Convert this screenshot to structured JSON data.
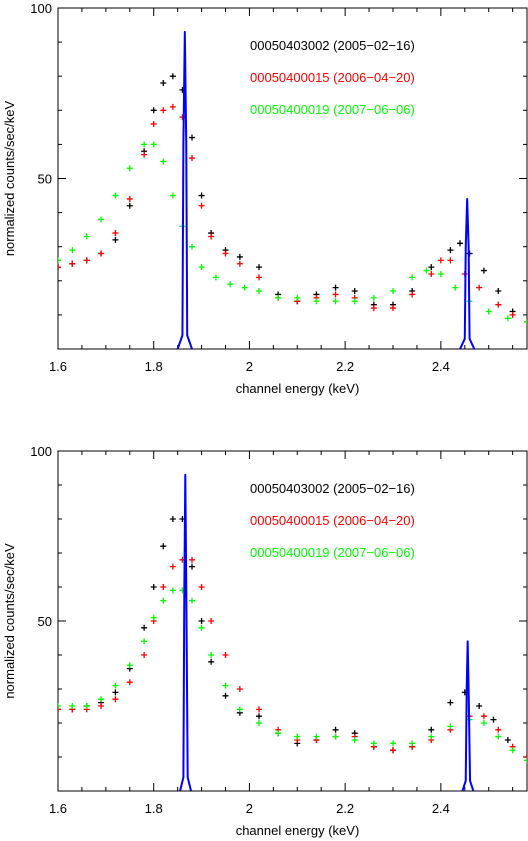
{
  "colors": {
    "series1": "#000000",
    "series2": "#ff0000",
    "series3": "#00ff00",
    "line": "#0000ff",
    "axis": "#000000"
  },
  "chart_data": [
    {
      "type": "scatter",
      "xlabel": "channel energy (keV)",
      "ylabel": "normalized counts/sec/keV",
      "xlim": [
        1.6,
        2.58
      ],
      "ylim": [
        0,
        100
      ],
      "xticks": [
        1.6,
        1.8,
        2,
        2.2,
        2.4
      ],
      "xtick_labels": [
        "1.6",
        "1.8",
        "2",
        "2.2",
        "2.4"
      ],
      "yticks": [
        50,
        100
      ],
      "ytick_labels": [
        "50",
        "100"
      ],
      "grid": false,
      "legend": "top-right",
      "series": [
        {
          "name": "00050403002 (2005−02−16)",
          "color": "#000000",
          "points": [
            [
              1.6,
              24
            ],
            [
              1.63,
              25
            ],
            [
              1.66,
              26
            ],
            [
              1.69,
              28
            ],
            [
              1.72,
              32
            ],
            [
              1.75,
              42
            ],
            [
              1.78,
              58
            ],
            [
              1.8,
              70
            ],
            [
              1.82,
              78
            ],
            [
              1.84,
              80
            ],
            [
              1.86,
              76
            ],
            [
              1.88,
              62
            ],
            [
              1.9,
              45
            ],
            [
              1.92,
              34
            ],
            [
              1.95,
              29
            ],
            [
              1.98,
              27
            ],
            [
              2.02,
              24
            ],
            [
              2.06,
              16
            ],
            [
              2.1,
              14
            ],
            [
              2.14,
              16
            ],
            [
              2.18,
              18
            ],
            [
              2.22,
              17
            ],
            [
              2.26,
              13
            ],
            [
              2.3,
              13
            ],
            [
              2.34,
              17
            ],
            [
              2.38,
              24
            ],
            [
              2.42,
              29
            ],
            [
              2.44,
              31
            ],
            [
              2.46,
              28
            ],
            [
              2.49,
              23
            ],
            [
              2.52,
              17
            ],
            [
              2.55,
              11
            ],
            [
              2.58,
              8
            ]
          ]
        },
        {
          "name": "00050400015 (2006−04−20)",
          "color": "#ff0000",
          "points": [
            [
              1.6,
              24
            ],
            [
              1.63,
              25
            ],
            [
              1.66,
              26
            ],
            [
              1.69,
              28
            ],
            [
              1.72,
              34
            ],
            [
              1.75,
              44
            ],
            [
              1.78,
              57
            ],
            [
              1.8,
              66
            ],
            [
              1.82,
              70
            ],
            [
              1.84,
              71
            ],
            [
              1.86,
              68
            ],
            [
              1.88,
              56
            ],
            [
              1.9,
              42
            ],
            [
              1.92,
              33
            ],
            [
              1.95,
              28
            ],
            [
              1.98,
              25
            ],
            [
              2.02,
              21
            ],
            [
              2.06,
              15
            ],
            [
              2.1,
              14
            ],
            [
              2.14,
              15
            ],
            [
              2.18,
              16
            ],
            [
              2.22,
              15
            ],
            [
              2.26,
              12
            ],
            [
              2.3,
              12
            ],
            [
              2.34,
              16
            ],
            [
              2.38,
              22
            ],
            [
              2.4,
              26
            ],
            [
              2.42,
              26
            ],
            [
              2.45,
              22
            ],
            [
              2.48,
              18
            ],
            [
              2.52,
              13
            ],
            [
              2.55,
              10
            ],
            [
              2.58,
              8
            ]
          ]
        },
        {
          "name": "00050400019 (2007−06−06)",
          "color": "#00ff00",
          "points": [
            [
              1.6,
              26
            ],
            [
              1.63,
              29
            ],
            [
              1.66,
              33
            ],
            [
              1.69,
              38
            ],
            [
              1.72,
              45
            ],
            [
              1.75,
              53
            ],
            [
              1.78,
              60
            ],
            [
              1.8,
              60
            ],
            [
              1.82,
              55
            ],
            [
              1.84,
              45
            ],
            [
              1.86,
              36
            ],
            [
              1.88,
              30
            ],
            [
              1.9,
              24
            ],
            [
              1.93,
              21
            ],
            [
              1.96,
              19
            ],
            [
              1.99,
              18
            ],
            [
              2.02,
              17
            ],
            [
              2.06,
              15
            ],
            [
              2.1,
              15
            ],
            [
              2.14,
              14
            ],
            [
              2.18,
              14
            ],
            [
              2.22,
              14
            ],
            [
              2.26,
              15
            ],
            [
              2.3,
              17
            ],
            [
              2.34,
              21
            ],
            [
              2.37,
              23
            ],
            [
              2.4,
              22
            ],
            [
              2.43,
              18
            ],
            [
              2.46,
              14
            ],
            [
              2.5,
              11
            ],
            [
              2.54,
              9
            ],
            [
              2.58,
              8
            ]
          ]
        }
      ],
      "lines": [
        {
          "color": "#0000ff",
          "points": [
            [
              1.85,
              0
            ],
            [
              1.86,
              4
            ],
            [
              1.862,
              60
            ],
            [
              1.865,
              93
            ],
            [
              1.868,
              60
            ],
            [
              1.87,
              4
            ],
            [
              1.88,
              0
            ]
          ]
        },
        {
          "color": "#0000ff",
          "points": [
            [
              2.44,
              0
            ],
            [
              2.45,
              3
            ],
            [
              2.452,
              30
            ],
            [
              2.455,
              44
            ],
            [
              2.458,
              30
            ],
            [
              2.46,
              3
            ],
            [
              2.47,
              0
            ]
          ]
        }
      ]
    },
    {
      "type": "scatter",
      "xlabel": "channel energy (keV)",
      "ylabel": "normalized counts/sec/keV",
      "xlim": [
        1.6,
        2.58
      ],
      "ylim": [
        0,
        100
      ],
      "xticks": [
        1.6,
        1.8,
        2,
        2.2,
        2.4
      ],
      "xtick_labels": [
        "1.6",
        "1.8",
        "2",
        "2.2",
        "2.4"
      ],
      "yticks": [
        50,
        100
      ],
      "ytick_labels": [
        "50",
        "100"
      ],
      "grid": false,
      "legend": "top-right",
      "series": [
        {
          "name": "00050403002 (2005−02−16)",
          "color": "#000000",
          "points": [
            [
              1.6,
              24
            ],
            [
              1.63,
              24
            ],
            [
              1.66,
              25
            ],
            [
              1.69,
              26
            ],
            [
              1.72,
              29
            ],
            [
              1.75,
              36
            ],
            [
              1.78,
              48
            ],
            [
              1.8,
              60
            ],
            [
              1.82,
              72
            ],
            [
              1.84,
              80
            ],
            [
              1.86,
              80
            ],
            [
              1.88,
              66
            ],
            [
              1.9,
              50
            ],
            [
              1.92,
              38
            ],
            [
              1.95,
              28
            ],
            [
              1.98,
              23
            ],
            [
              2.02,
              22
            ],
            [
              2.06,
              17
            ],
            [
              2.1,
              14
            ],
            [
              2.14,
              15
            ],
            [
              2.18,
              18
            ],
            [
              2.22,
              17
            ],
            [
              2.26,
              13
            ],
            [
              2.3,
              12
            ],
            [
              2.34,
              13
            ],
            [
              2.38,
              18
            ],
            [
              2.42,
              26
            ],
            [
              2.45,
              29
            ],
            [
              2.48,
              25
            ],
            [
              2.51,
              21
            ],
            [
              2.54,
              15
            ],
            [
              2.58,
              10
            ]
          ]
        },
        {
          "name": "00050400015 (2006−04−20)",
          "color": "#ff0000",
          "points": [
            [
              1.6,
              24
            ],
            [
              1.63,
              24
            ],
            [
              1.66,
              24
            ],
            [
              1.69,
              25
            ],
            [
              1.72,
              27
            ],
            [
              1.75,
              32
            ],
            [
              1.78,
              40
            ],
            [
              1.8,
              50
            ],
            [
              1.82,
              60
            ],
            [
              1.84,
              66
            ],
            [
              1.86,
              68
            ],
            [
              1.88,
              68
            ],
            [
              1.9,
              60
            ],
            [
              1.92,
              50
            ],
            [
              1.95,
              40
            ],
            [
              1.98,
              30
            ],
            [
              2.02,
              24
            ],
            [
              2.06,
              18
            ],
            [
              2.1,
              15
            ],
            [
              2.14,
              15
            ],
            [
              2.18,
              16
            ],
            [
              2.22,
              16
            ],
            [
              2.26,
              13
            ],
            [
              2.3,
              12
            ],
            [
              2.34,
              13
            ],
            [
              2.38,
              15
            ],
            [
              2.42,
              18
            ],
            [
              2.46,
              22
            ],
            [
              2.49,
              22
            ],
            [
              2.52,
              18
            ],
            [
              2.55,
              13
            ],
            [
              2.58,
              10
            ]
          ]
        },
        {
          "name": "00050400019 (2007−06−06)",
          "color": "#00ff00",
          "points": [
            [
              1.6,
              25
            ],
            [
              1.63,
              25
            ],
            [
              1.66,
              25
            ],
            [
              1.69,
              27
            ],
            [
              1.72,
              31
            ],
            [
              1.75,
              37
            ],
            [
              1.78,
              44
            ],
            [
              1.8,
              51
            ],
            [
              1.82,
              56
            ],
            [
              1.84,
              59
            ],
            [
              1.86,
              59
            ],
            [
              1.88,
              56
            ],
            [
              1.9,
              48
            ],
            [
              1.92,
              40
            ],
            [
              1.95,
              31
            ],
            [
              1.98,
              24
            ],
            [
              2.02,
              20
            ],
            [
              2.06,
              17
            ],
            [
              2.1,
              16
            ],
            [
              2.14,
              16
            ],
            [
              2.18,
              16
            ],
            [
              2.22,
              15
            ],
            [
              2.26,
              14
            ],
            [
              2.3,
              14
            ],
            [
              2.34,
              14
            ],
            [
              2.38,
              16
            ],
            [
              2.42,
              19
            ],
            [
              2.46,
              21
            ],
            [
              2.49,
              20
            ],
            [
              2.52,
              16
            ],
            [
              2.55,
              12
            ],
            [
              2.58,
              9
            ]
          ]
        }
      ],
      "lines": [
        {
          "color": "#0000ff",
          "points": [
            [
              1.855,
              0
            ],
            [
              1.862,
              4
            ],
            [
              1.864,
              60
            ],
            [
              1.866,
              93
            ],
            [
              1.868,
              60
            ],
            [
              1.871,
              4
            ],
            [
              1.878,
              0
            ]
          ]
        },
        {
          "color": "#0000ff",
          "points": [
            [
              2.445,
              0
            ],
            [
              2.452,
              3
            ],
            [
              2.454,
              30
            ],
            [
              2.456,
              44
            ],
            [
              2.458,
              30
            ],
            [
              2.461,
              3
            ],
            [
              2.468,
              0
            ]
          ]
        }
      ]
    }
  ]
}
